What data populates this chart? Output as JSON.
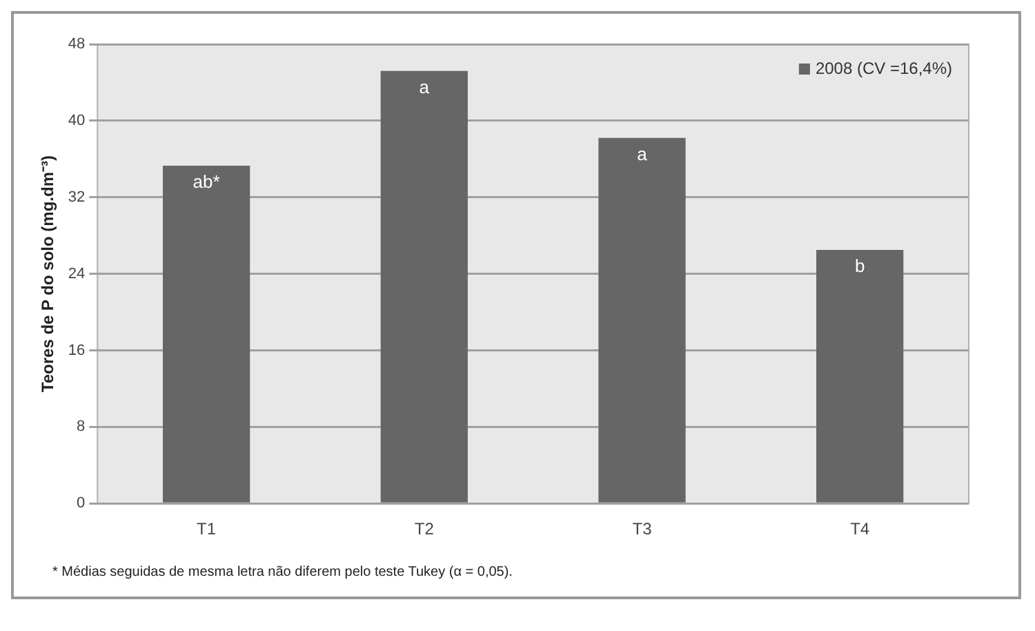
{
  "chart_data": {
    "type": "bar",
    "ylabel": "Teores de P do solo (mg.dm⁻³)",
    "categories": [
      "T1",
      "T2",
      "T3",
      "T4"
    ],
    "series": [
      {
        "name": "2008 (CV =16,4%)",
        "color": "#666666",
        "values": [
          35.3,
          45.2,
          38.2,
          26.5
        ]
      }
    ],
    "ylim": [
      0,
      48
    ],
    "yticks": [
      0,
      8,
      16,
      24,
      32,
      40,
      48
    ],
    "grid": "y",
    "legend": "top right",
    "annotations": [
      {
        "text": "ab*",
        "x": "T1",
        "y": 35.3
      },
      {
        "text": "a",
        "x": "T2",
        "y": 45.2
      },
      {
        "text": "a",
        "x": "T3",
        "y": 38.2
      },
      {
        "text": "b",
        "x": "T4",
        "y": 26.5
      },
      "* Médias seguidas de mesma letra não diferem pelo teste Tukey (α = 0,05)."
    ]
  }
}
